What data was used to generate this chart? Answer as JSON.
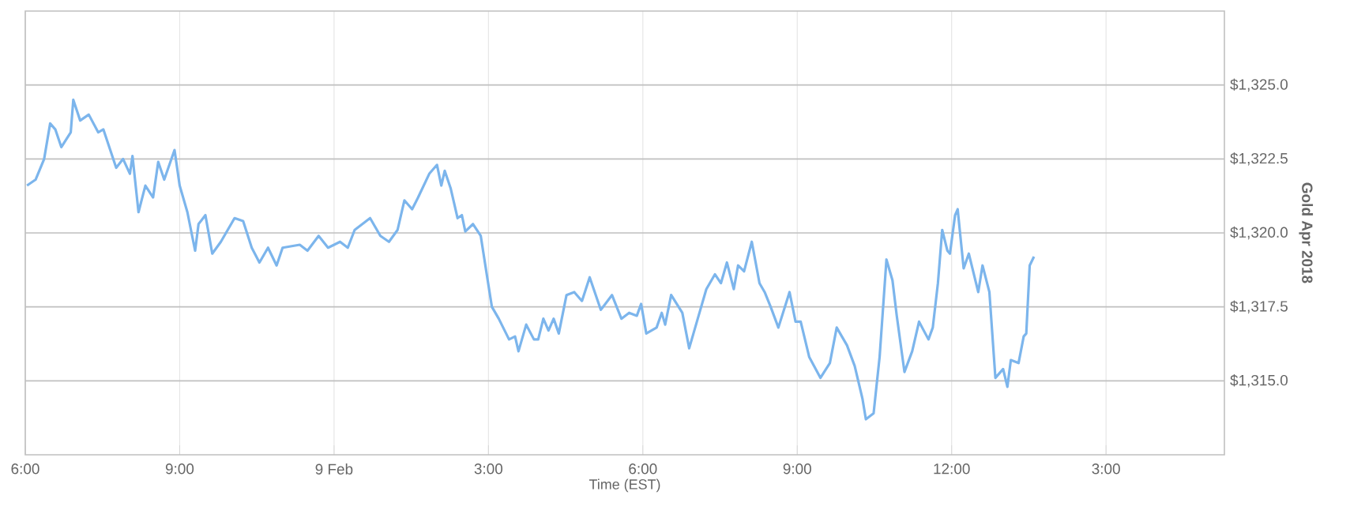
{
  "chart_data": {
    "type": "line",
    "xlabel": "Time (EST)",
    "ylabel": "Gold Apr 2018",
    "xlim": [
      "2018-02-08T18:00",
      "2018-02-09T17:18"
    ],
    "ylim": [
      1312.5,
      1327.5
    ],
    "xticks": [
      {
        "value": "2018-02-08T18:00",
        "label": "6:00"
      },
      {
        "value": "2018-02-08T21:00",
        "label": "9:00"
      },
      {
        "value": "2018-02-09T00:00",
        "label": "9 Feb"
      },
      {
        "value": "2018-02-09T03:00",
        "label": "3:00"
      },
      {
        "value": "2018-02-09T06:00",
        "label": "6:00"
      },
      {
        "value": "2018-02-09T09:00",
        "label": "9:00"
      },
      {
        "value": "2018-02-09T12:00",
        "label": "12:00"
      },
      {
        "value": "2018-02-09T15:00",
        "label": "3:00"
      }
    ],
    "yticks": [
      {
        "value": 1315,
        "label": "$1,315.0"
      },
      {
        "value": 1317.5,
        "label": "$1,317.5"
      },
      {
        "value": 1320,
        "label": "$1,320.0"
      },
      {
        "value": 1322.5,
        "label": "$1,322.5"
      },
      {
        "value": 1325,
        "label": "$1,325.0"
      }
    ],
    "grid": true,
    "marker": "none",
    "line_style": "solid",
    "series": [
      {
        "color": "#7cb5ec",
        "x": [
          "2018-02-08T18:02",
          "2018-02-08T18:12",
          "2018-02-08T18:22",
          "2018-02-08T18:29",
          "2018-02-08T18:35",
          "2018-02-08T18:42",
          "2018-02-08T18:53",
          "2018-02-08T18:56",
          "2018-02-08T19:04",
          "2018-02-08T19:14",
          "2018-02-08T19:25",
          "2018-02-08T19:31",
          "2018-02-08T19:46",
          "2018-02-08T19:54",
          "2018-02-08T20:02",
          "2018-02-08T20:05",
          "2018-02-08T20:12",
          "2018-02-08T20:20",
          "2018-02-08T20:29",
          "2018-02-08T20:35",
          "2018-02-08T20:42",
          "2018-02-08T20:54",
          "2018-02-08T21:00",
          "2018-02-08T21:09",
          "2018-02-08T21:18",
          "2018-02-08T21:22",
          "2018-02-08T21:30",
          "2018-02-08T21:38",
          "2018-02-08T21:48",
          "2018-02-08T22:04",
          "2018-02-08T22:14",
          "2018-02-08T22:24",
          "2018-02-08T22:33",
          "2018-02-08T22:43",
          "2018-02-08T22:53",
          "2018-02-08T23:00",
          "2018-02-08T23:20",
          "2018-02-08T23:29",
          "2018-02-08T23:42",
          "2018-02-08T23:53",
          "2018-02-09T00:07",
          "2018-02-09T00:16",
          "2018-02-09T00:24",
          "2018-02-09T00:42",
          "2018-02-09T00:54",
          "2018-02-09T01:04",
          "2018-02-09T01:14",
          "2018-02-09T01:22",
          "2018-02-09T01:31",
          "2018-02-09T01:38",
          "2018-02-09T01:51",
          "2018-02-09T02:00",
          "2018-02-09T02:05",
          "2018-02-09T02:09",
          "2018-02-09T02:16",
          "2018-02-09T02:24",
          "2018-02-09T02:29",
          "2018-02-09T02:33",
          "2018-02-09T02:42",
          "2018-02-09T02:51",
          "2018-02-09T02:58",
          "2018-02-09T03:04",
          "2018-02-09T03:12",
          "2018-02-09T03:24",
          "2018-02-09T03:31",
          "2018-02-09T03:35",
          "2018-02-09T03:44",
          "2018-02-09T03:53",
          "2018-02-09T03:58",
          "2018-02-09T04:04",
          "2018-02-09T04:10",
          "2018-02-09T04:16",
          "2018-02-09T04:22",
          "2018-02-09T04:31",
          "2018-02-09T04:40",
          "2018-02-09T04:49",
          "2018-02-09T04:58",
          "2018-02-09T05:11",
          "2018-02-09T05:24",
          "2018-02-09T05:35",
          "2018-02-09T05:44",
          "2018-02-09T05:53",
          "2018-02-09T05:58",
          "2018-02-09T06:04",
          "2018-02-09T06:16",
          "2018-02-09T06:22",
          "2018-02-09T06:26",
          "2018-02-09T06:33",
          "2018-02-09T06:46",
          "2018-02-09T06:54",
          "2018-02-09T07:04",
          "2018-02-09T07:14",
          "2018-02-09T07:24",
          "2018-02-09T07:31",
          "2018-02-09T07:38",
          "2018-02-09T07:46",
          "2018-02-09T07:51",
          "2018-02-09T07:58",
          "2018-02-09T08:07",
          "2018-02-09T08:16",
          "2018-02-09T08:22",
          "2018-02-09T08:29",
          "2018-02-09T08:38",
          "2018-02-09T08:51",
          "2018-02-09T08:58",
          "2018-02-09T09:04",
          "2018-02-09T09:14",
          "2018-02-09T09:27",
          "2018-02-09T09:38",
          "2018-02-09T09:46",
          "2018-02-09T09:58",
          "2018-02-09T10:07",
          "2018-02-09T10:16",
          "2018-02-09T10:20",
          "2018-02-09T10:29",
          "2018-02-09T10:36",
          "2018-02-09T10:44",
          "2018-02-09T10:51",
          "2018-02-09T10:56",
          "2018-02-09T11:05",
          "2018-02-09T11:14",
          "2018-02-09T11:22",
          "2018-02-09T11:33",
          "2018-02-09T11:38",
          "2018-02-09T11:44",
          "2018-02-09T11:49",
          "2018-02-09T11:55",
          "2018-02-09T11:58",
          "2018-02-09T12:04",
          "2018-02-09T12:07",
          "2018-02-09T12:14",
          "2018-02-09T12:20",
          "2018-02-09T12:31",
          "2018-02-09T12:36",
          "2018-02-09T12:44",
          "2018-02-09T12:51",
          "2018-02-09T13:00",
          "2018-02-09T13:05",
          "2018-02-09T13:09",
          "2018-02-09T13:18",
          "2018-02-09T13:24",
          "2018-02-09T13:27",
          "2018-02-09T13:31",
          "2018-02-09T13:36"
        ],
        "values": [
          1321.6,
          1321.8,
          1322.5,
          1323.7,
          1323.5,
          1322.9,
          1323.4,
          1324.5,
          1323.8,
          1324.0,
          1323.4,
          1323.5,
          1322.2,
          1322.5,
          1322.0,
          1322.6,
          1320.7,
          1321.6,
          1321.2,
          1322.4,
          1321.8,
          1322.8,
          1321.6,
          1320.7,
          1319.4,
          1320.3,
          1320.6,
          1319.3,
          1319.7,
          1320.5,
          1320.4,
          1319.5,
          1319.0,
          1319.5,
          1318.9,
          1319.5,
          1319.6,
          1319.4,
          1319.9,
          1319.5,
          1319.7,
          1319.5,
          1320.1,
          1320.5,
          1319.9,
          1319.7,
          1320.1,
          1321.1,
          1320.8,
          1321.2,
          1322.0,
          1322.3,
          1321.6,
          1322.1,
          1321.5,
          1320.5,
          1320.6,
          1320.05,
          1320.3,
          1319.9,
          1318.6,
          1317.5,
          1317.1,
          1316.4,
          1316.5,
          1316.0,
          1316.9,
          1316.4,
          1316.4,
          1317.1,
          1316.7,
          1317.1,
          1316.6,
          1317.9,
          1318.0,
          1317.7,
          1318.5,
          1317.4,
          1317.9,
          1317.1,
          1317.3,
          1317.2,
          1317.6,
          1316.6,
          1316.8,
          1317.3,
          1316.9,
          1317.9,
          1317.3,
          1316.1,
          1317.1,
          1318.1,
          1318.6,
          1318.3,
          1319.0,
          1318.1,
          1318.9,
          1318.7,
          1319.7,
          1318.3,
          1318.0,
          1317.5,
          1316.8,
          1318.0,
          1317.0,
          1317.0,
          1315.8,
          1315.1,
          1315.6,
          1316.8,
          1316.2,
          1315.5,
          1314.4,
          1313.7,
          1313.9,
          1315.8,
          1319.1,
          1318.4,
          1317.2,
          1315.3,
          1316.0,
          1317.0,
          1316.4,
          1316.8,
          1318.3,
          1320.1,
          1319.4,
          1319.3,
          1320.6,
          1320.8,
          1318.8,
          1319.3,
          1318.0,
          1318.9,
          1318.0,
          1315.1,
          1315.4,
          1314.8,
          1315.7,
          1315.6,
          1316.5,
          1316.6,
          1318.9,
          1319.2
        ]
      }
    ]
  }
}
